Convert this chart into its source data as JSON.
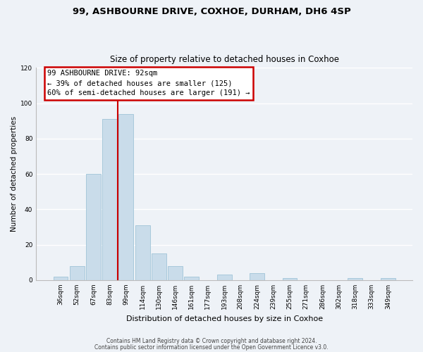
{
  "title_line1": "99, ASHBOURNE DRIVE, COXHOE, DURHAM, DH6 4SP",
  "title_line2": "Size of property relative to detached houses in Coxhoe",
  "xlabel": "Distribution of detached houses by size in Coxhoe",
  "ylabel": "Number of detached properties",
  "bar_labels": [
    "36sqm",
    "52sqm",
    "67sqm",
    "83sqm",
    "99sqm",
    "114sqm",
    "130sqm",
    "146sqm",
    "161sqm",
    "177sqm",
    "193sqm",
    "208sqm",
    "224sqm",
    "239sqm",
    "255sqm",
    "271sqm",
    "286sqm",
    "302sqm",
    "318sqm",
    "333sqm",
    "349sqm"
  ],
  "bar_values": [
    2,
    8,
    60,
    91,
    94,
    31,
    15,
    8,
    2,
    0,
    3,
    0,
    4,
    0,
    1,
    0,
    0,
    0,
    1,
    0,
    1
  ],
  "bar_color": "#c9dcea",
  "bar_edge_color": "#a0c4d8",
  "ylim": [
    0,
    120
  ],
  "yticks": [
    0,
    20,
    40,
    60,
    80,
    100,
    120
  ],
  "annotation_line1": "99 ASHBOURNE DRIVE: 92sqm",
  "annotation_line2": "← 39% of detached houses are smaller (125)",
  "annotation_line3": "60% of semi-detached houses are larger (191) →",
  "property_line_index": 3.5,
  "footer_line1": "Contains HM Land Registry data © Crown copyright and database right 2024.",
  "footer_line2": "Contains public sector information licensed under the Open Government Licence v3.0.",
  "bg_color": "#eef2f7",
  "grid_color": "#ffffff",
  "annotation_box_facecolor": "#ffffff",
  "annotation_box_edgecolor": "#cc0000",
  "property_line_color": "#cc0000",
  "title1_fontsize": 9.5,
  "title2_fontsize": 8.5,
  "ylabel_fontsize": 7.5,
  "xlabel_fontsize": 8,
  "tick_fontsize": 6.5,
  "annot_fontsize": 7.5,
  "footer_fontsize": 5.5
}
